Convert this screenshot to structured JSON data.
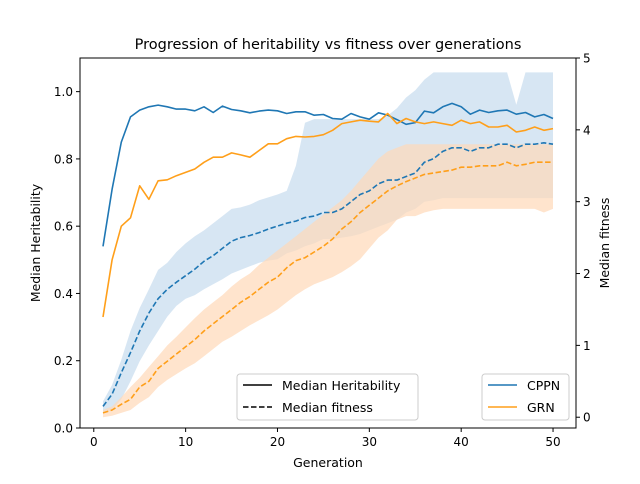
{
  "chart_data": {
    "type": "line",
    "title": "Progression of heritability vs fitness over generations",
    "xlabel": "Generation",
    "ylabel_left": "Median Heritability",
    "ylabel_right": "Median fitness",
    "xlim": [
      -1.5,
      52.5
    ],
    "ylim_left": [
      0.0,
      1.1
    ],
    "ylim_right": [
      -0.15,
      5.0
    ],
    "xticks": [
      0,
      10,
      20,
      30,
      40,
      50
    ],
    "yticks_left": [
      0.0,
      0.2,
      0.4,
      0.6,
      0.8,
      1.0
    ],
    "yticks_right": [
      0,
      1,
      2,
      3,
      4,
      5
    ],
    "grid": false,
    "legend_style": {
      "placement": "bottom-center",
      "entries": [
        {
          "label": "Median Heritability",
          "linestyle": "solid"
        },
        {
          "label": "Median fitness",
          "linestyle": "dashed"
        }
      ]
    },
    "legend_series": {
      "placement": "lower-right",
      "entries": [
        {
          "label": "CPPN",
          "color": "#1f77b4"
        },
        {
          "label": "GRN",
          "color": "#ff9f1a"
        }
      ]
    },
    "x": [
      1,
      2,
      3,
      4,
      5,
      6,
      7,
      8,
      9,
      10,
      11,
      12,
      13,
      14,
      15,
      16,
      17,
      18,
      19,
      20,
      21,
      22,
      23,
      24,
      25,
      26,
      27,
      28,
      29,
      30,
      31,
      32,
      33,
      34,
      35,
      36,
      37,
      38,
      39,
      40,
      41,
      42,
      43,
      44,
      45,
      46,
      47,
      48,
      49,
      50
    ],
    "series": [
      {
        "name": "CPPN",
        "color": "#1f77b4",
        "band_color": "#c6dcee",
        "heritability": [
          0.54,
          0.71,
          0.85,
          0.925,
          0.945,
          0.955,
          0.96,
          0.955,
          0.948,
          0.948,
          0.943,
          0.955,
          0.938,
          0.957,
          0.947,
          0.943,
          0.937,
          0.942,
          0.945,
          0.943,
          0.935,
          0.94,
          0.94,
          0.93,
          0.932,
          0.92,
          0.918,
          0.935,
          0.925,
          0.918,
          0.937,
          0.93,
          0.917,
          0.903,
          0.908,
          0.942,
          0.937,
          0.955,
          0.965,
          0.955,
          0.933,
          0.945,
          0.938,
          0.943,
          0.945,
          0.933,
          0.938,
          0.925,
          0.932,
          0.92
        ],
        "fitness": [
          0.15,
          0.32,
          0.62,
          0.9,
          1.2,
          1.45,
          1.65,
          1.78,
          1.88,
          1.97,
          2.06,
          2.17,
          2.25,
          2.35,
          2.45,
          2.5,
          2.53,
          2.57,
          2.62,
          2.66,
          2.7,
          2.73,
          2.78,
          2.8,
          2.85,
          2.85,
          2.9,
          3.0,
          3.1,
          3.15,
          3.25,
          3.3,
          3.3,
          3.35,
          3.4,
          3.55,
          3.6,
          3.7,
          3.75,
          3.75,
          3.7,
          3.75,
          3.75,
          3.8,
          3.8,
          3.75,
          3.8,
          3.8,
          3.82,
          3.8
        ],
        "fitness_upper": [
          0.22,
          0.45,
          0.8,
          1.2,
          1.52,
          1.78,
          2.05,
          2.15,
          2.3,
          2.42,
          2.52,
          2.6,
          2.7,
          2.8,
          2.9,
          2.92,
          2.96,
          3.02,
          3.06,
          3.1,
          3.15,
          3.5,
          4.1,
          4.15,
          4.15,
          4.15,
          4.15,
          4.15,
          4.15,
          4.15,
          4.15,
          4.2,
          4.3,
          4.45,
          4.55,
          4.7,
          4.8,
          4.8,
          4.8,
          4.8,
          4.8,
          4.8,
          4.8,
          4.8,
          4.8,
          4.35,
          4.8,
          4.8,
          4.8,
          4.8
        ],
        "fitness_lower": [
          0.05,
          0.1,
          0.25,
          0.5,
          0.78,
          1.0,
          1.2,
          1.4,
          1.55,
          1.65,
          1.7,
          1.78,
          1.85,
          1.92,
          2.0,
          2.05,
          2.1,
          2.15,
          2.18,
          2.2,
          2.28,
          2.32,
          2.38,
          2.42,
          2.48,
          2.48,
          2.5,
          2.52,
          2.55,
          2.6,
          2.65,
          2.7,
          2.75,
          2.85,
          2.9,
          3.0,
          3.02,
          3.05,
          3.05,
          3.05,
          3.05,
          3.05,
          3.05,
          3.05,
          3.05,
          3.05,
          3.05,
          3.05,
          3.05,
          3.05
        ]
      },
      {
        "name": "GRN",
        "color": "#ff9f1a",
        "band_color": "#ffd9b8",
        "heritability": [
          0.33,
          0.5,
          0.6,
          0.625,
          0.72,
          0.68,
          0.735,
          0.738,
          0.75,
          0.76,
          0.77,
          0.79,
          0.805,
          0.805,
          0.818,
          0.812,
          0.805,
          0.825,
          0.845,
          0.845,
          0.86,
          0.867,
          0.865,
          0.867,
          0.872,
          0.885,
          0.905,
          0.91,
          0.915,
          0.912,
          0.91,
          0.935,
          0.905,
          0.92,
          0.91,
          0.905,
          0.91,
          0.905,
          0.9,
          0.915,
          0.905,
          0.91,
          0.895,
          0.895,
          0.9,
          0.88,
          0.885,
          0.895,
          0.885,
          0.89
        ],
        "fitness": [
          0.06,
          0.1,
          0.18,
          0.25,
          0.42,
          0.5,
          0.68,
          0.78,
          0.88,
          0.98,
          1.08,
          1.2,
          1.3,
          1.4,
          1.5,
          1.6,
          1.68,
          1.78,
          1.88,
          1.95,
          2.08,
          2.18,
          2.22,
          2.3,
          2.38,
          2.48,
          2.62,
          2.72,
          2.85,
          2.95,
          3.05,
          3.15,
          3.22,
          3.28,
          3.33,
          3.38,
          3.4,
          3.42,
          3.44,
          3.48,
          3.48,
          3.5,
          3.5,
          3.5,
          3.55,
          3.5,
          3.52,
          3.55,
          3.55,
          3.55
        ],
        "fitness_upper": [
          0.1,
          0.15,
          0.28,
          0.42,
          0.55,
          0.7,
          0.85,
          1.0,
          1.12,
          1.25,
          1.38,
          1.5,
          1.6,
          1.7,
          1.82,
          1.92,
          2.0,
          2.12,
          2.22,
          2.32,
          2.42,
          2.52,
          2.62,
          2.72,
          2.82,
          2.92,
          3.02,
          3.15,
          3.3,
          3.45,
          3.6,
          3.7,
          3.75,
          3.8,
          3.8,
          3.8,
          3.8,
          3.8,
          3.8,
          3.8,
          3.8,
          3.8,
          3.8,
          3.8,
          3.8,
          3.8,
          3.8,
          3.8,
          3.8,
          3.8
        ],
        "fitness_lower": [
          0.0,
          0.02,
          0.06,
          0.1,
          0.2,
          0.28,
          0.42,
          0.52,
          0.6,
          0.68,
          0.75,
          0.85,
          0.95,
          1.05,
          1.12,
          1.2,
          1.28,
          1.35,
          1.42,
          1.5,
          1.6,
          1.7,
          1.78,
          1.85,
          1.9,
          1.95,
          2.02,
          2.1,
          2.2,
          2.35,
          2.5,
          2.6,
          2.75,
          2.8,
          2.8,
          2.85,
          2.88,
          2.9,
          2.9,
          2.9,
          2.9,
          2.9,
          2.9,
          2.9,
          2.9,
          2.9,
          2.9,
          2.9,
          2.85,
          2.9
        ]
      }
    ]
  }
}
